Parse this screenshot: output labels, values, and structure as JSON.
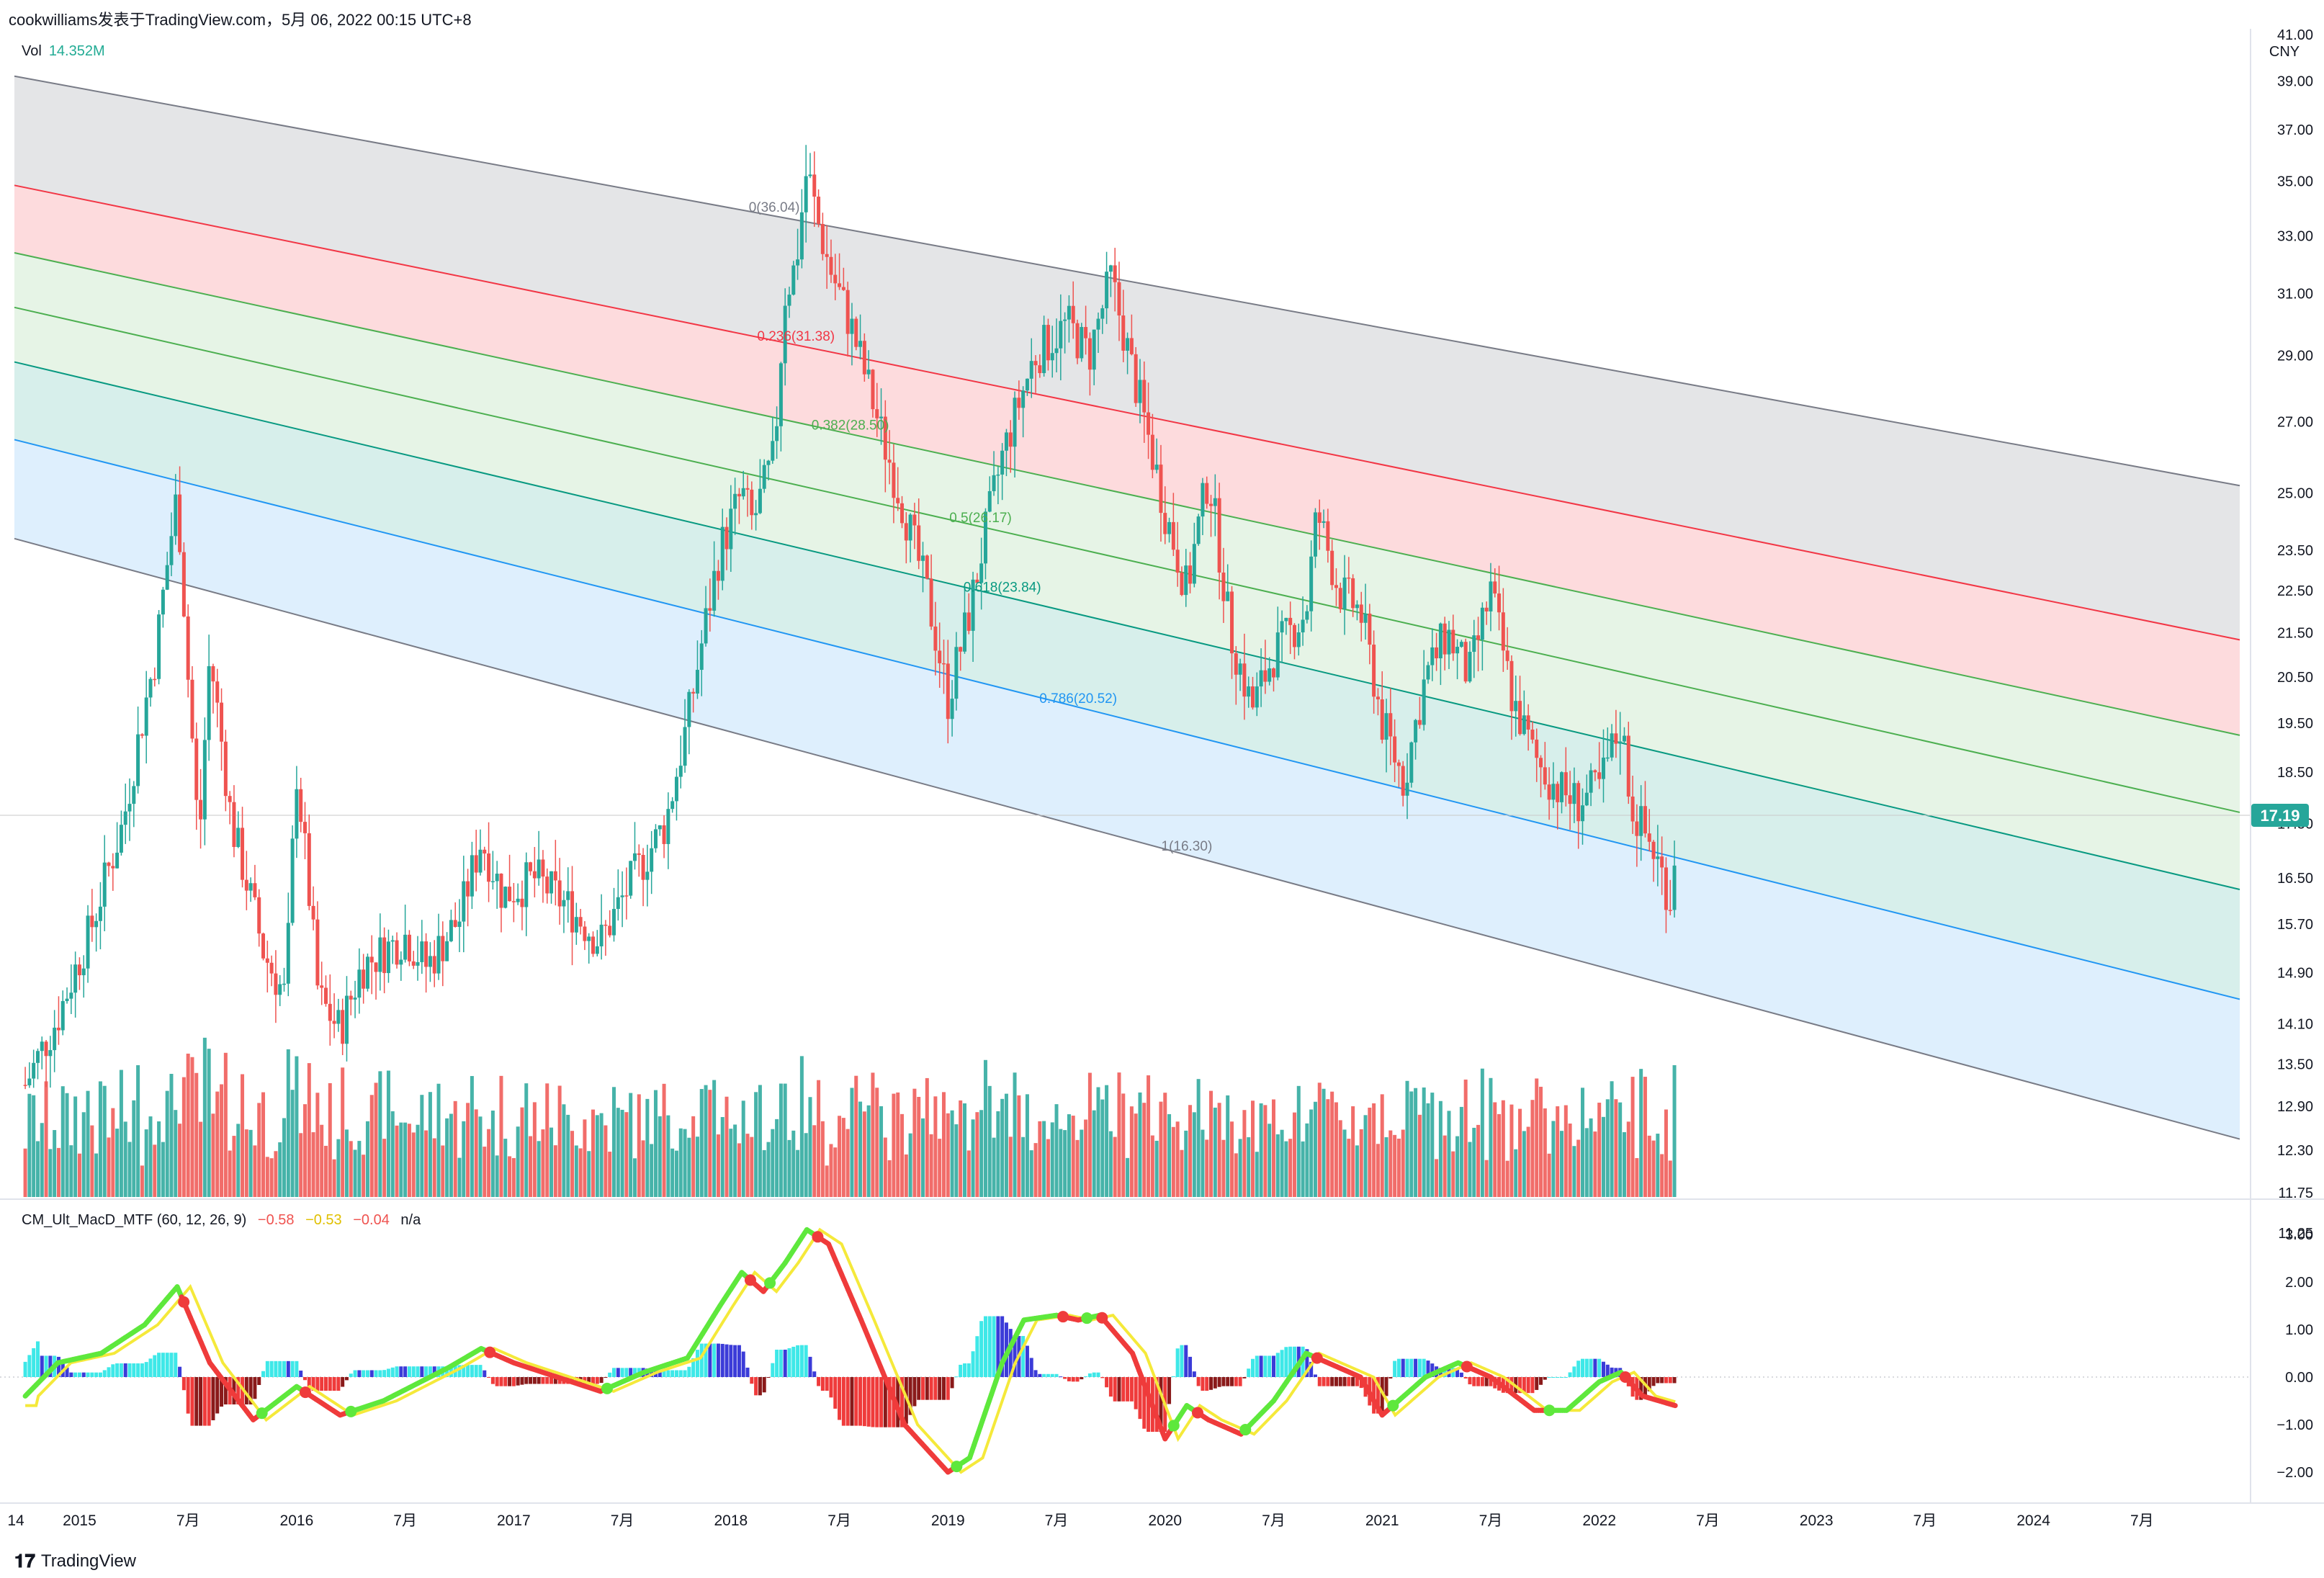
{
  "header": {
    "publisher": "cookwilliams发表于TradingView.com，5月 06, 2022 00:15 UTC+8"
  },
  "volume_legend": {
    "name": "Vol",
    "value": "14.352M"
  },
  "macd_legend": {
    "name": "CM_Ult_MacD_MTF (60, 12, 26, 9)",
    "v1": "−0.58",
    "v2": "−0.53",
    "v3": "−0.04",
    "v4": "n/a"
  },
  "price_axis": {
    "currency": "CNY",
    "current_price": "17.19"
  },
  "footer": {
    "brand": "TradingView"
  },
  "colors": {
    "up": "#26a69a",
    "down": "#ef5350",
    "fib_gray": "#787b86",
    "fib_red": "#f23645",
    "fib_green": "#4caf50",
    "fib_teal": "#089981",
    "fib_blue": "#2196f3"
  },
  "chart_data": {
    "type": "candlestick",
    "y_scale": "log",
    "y_ticks": [
      "41.00",
      "39.00",
      "37.00",
      "35.00",
      "33.00",
      "31.00",
      "29.00",
      "27.00",
      "25.00",
      "23.50",
      "22.50",
      "21.50",
      "20.50",
      "19.50",
      "18.50",
      "17.50",
      "16.50",
      "15.70",
      "14.90",
      "14.10",
      "13.50",
      "12.90",
      "12.30",
      "11.75",
      "11.25"
    ],
    "x_ticks": [
      "14",
      "2015",
      "7月",
      "2016",
      "7月",
      "2017",
      "7月",
      "2018",
      "7月",
      "2019",
      "7月",
      "2020",
      "7月",
      "2021",
      "7月",
      "2022",
      "7月",
      "2023",
      "7月",
      "2024",
      "7月"
    ],
    "price_path": [
      [
        2014.75,
        13.2
      ],
      [
        2014.9,
        14.2
      ],
      [
        2015.05,
        15.6
      ],
      [
        2015.2,
        17.5
      ],
      [
        2015.35,
        21.0
      ],
      [
        2015.45,
        25.0
      ],
      [
        2015.5,
        20.5
      ],
      [
        2015.55,
        17.0
      ],
      [
        2015.6,
        21.0
      ],
      [
        2015.7,
        17.5
      ],
      [
        2015.85,
        15.2
      ],
      [
        2015.95,
        14.5
      ],
      [
        2016.0,
        18.5
      ],
      [
        2016.1,
        14.5
      ],
      [
        2016.2,
        14.0
      ],
      [
        2016.3,
        15.0
      ],
      [
        2016.5,
        15.5
      ],
      [
        2016.6,
        15.0
      ],
      [
        2016.75,
        15.8
      ],
      [
        2016.85,
        17.2
      ],
      [
        2016.95,
        16.2
      ],
      [
        2017.1,
        16.5
      ],
      [
        2017.25,
        16.0
      ],
      [
        2017.4,
        15.4
      ],
      [
        2017.55,
        16.5
      ],
      [
        2017.7,
        17.5
      ],
      [
        2017.8,
        19.5
      ],
      [
        2017.95,
        23.5
      ],
      [
        2018.05,
        25.0
      ],
      [
        2018.1,
        24.2
      ],
      [
        2018.2,
        26.0
      ],
      [
        2018.25,
        31.0
      ],
      [
        2018.3,
        32.0
      ],
      [
        2018.35,
        35.5
      ],
      [
        2018.4,
        33.5
      ],
      [
        2018.45,
        32.0
      ],
      [
        2018.55,
        30.0
      ],
      [
        2018.7,
        26.5
      ],
      [
        2018.9,
        22.5
      ],
      [
        2019.0,
        20.0
      ],
      [
        2019.1,
        22.0
      ],
      [
        2019.25,
        26.0
      ],
      [
        2019.4,
        29.0
      ],
      [
        2019.55,
        30.0
      ],
      [
        2019.65,
        29.0
      ],
      [
        2019.75,
        31.5
      ],
      [
        2019.85,
        28.5
      ],
      [
        2020.0,
        24.5
      ],
      [
        2020.1,
        22.5
      ],
      [
        2020.2,
        25.5
      ],
      [
        2020.3,
        21.5
      ],
      [
        2020.4,
        19.8
      ],
      [
        2020.5,
        21.0
      ],
      [
        2020.65,
        22.0
      ],
      [
        2020.7,
        24.5
      ],
      [
        2020.8,
        22.5
      ],
      [
        2020.9,
        22.0
      ],
      [
        2021.0,
        19.5
      ],
      [
        2021.1,
        18.3
      ],
      [
        2021.2,
        20.5
      ],
      [
        2021.3,
        21.5
      ],
      [
        2021.4,
        20.5
      ],
      [
        2021.5,
        22.5
      ],
      [
        2021.6,
        20.0
      ],
      [
        2021.7,
        18.8
      ],
      [
        2021.8,
        18.2
      ],
      [
        2021.9,
        17.9
      ],
      [
        2022.0,
        18.2
      ],
      [
        2022.1,
        19.5
      ],
      [
        2022.15,
        17.8
      ],
      [
        2022.25,
        17.0
      ],
      [
        2022.33,
        16.1
      ],
      [
        2022.35,
        17.19
      ]
    ],
    "fib_channel": {
      "levels": [
        {
          "ratio": 0,
          "label": "0(36.04)"
        },
        {
          "ratio": 0.236,
          "label": "0.236(31.38)"
        },
        {
          "ratio": 0.382,
          "label": "0.382(28.50)"
        },
        {
          "ratio": 0.5,
          "label": "0.5(26.17)"
        },
        {
          "ratio": 0.618,
          "label": "0.618(23.84)"
        },
        {
          "ratio": 0.786,
          "label": "0.786(20.52)"
        },
        {
          "ratio": 1,
          "label": "1(16.30)"
        }
      ]
    },
    "macd_y_ticks": [
      "3.00",
      "2.00",
      "1.00",
      "0.00",
      "−1.00",
      "−2.00"
    ],
    "macd_path": [
      [
        2014.75,
        -0.4
      ],
      [
        2014.9,
        0.3
      ],
      [
        2015.1,
        0.5
      ],
      [
        2015.3,
        1.1
      ],
      [
        2015.45,
        1.9
      ],
      [
        2015.6,
        0.3
      ],
      [
        2015.8,
        -0.9
      ],
      [
        2016.0,
        -0.2
      ],
      [
        2016.2,
        -0.8
      ],
      [
        2016.4,
        -0.5
      ],
      [
        2016.7,
        0.2
      ],
      [
        2016.85,
        0.6
      ],
      [
        2017.0,
        0.3
      ],
      [
        2017.2,
        0.0
      ],
      [
        2017.4,
        -0.3
      ],
      [
        2017.6,
        0.1
      ],
      [
        2017.8,
        0.4
      ],
      [
        2017.95,
        1.5
      ],
      [
        2018.05,
        2.2
      ],
      [
        2018.15,
        1.8
      ],
      [
        2018.25,
        2.4
      ],
      [
        2018.35,
        3.1
      ],
      [
        2018.45,
        2.8
      ],
      [
        2018.6,
        1.2
      ],
      [
        2018.8,
        -1.0
      ],
      [
        2019.0,
        -2.0
      ],
      [
        2019.1,
        -1.7
      ],
      [
        2019.25,
        0.3
      ],
      [
        2019.35,
        1.2
      ],
      [
        2019.5,
        1.3
      ],
      [
        2019.6,
        1.2
      ],
      [
        2019.7,
        1.3
      ],
      [
        2019.85,
        0.5
      ],
      [
        2020.0,
        -1.3
      ],
      [
        2020.1,
        -0.6
      ],
      [
        2020.2,
        -0.9
      ],
      [
        2020.35,
        -1.2
      ],
      [
        2020.5,
        -0.5
      ],
      [
        2020.65,
        0.5
      ],
      [
        2020.75,
        0.3
      ],
      [
        2020.9,
        0.0
      ],
      [
        2021.0,
        -0.8
      ],
      [
        2021.2,
        0.0
      ],
      [
        2021.35,
        0.3
      ],
      [
        2021.5,
        0.0
      ],
      [
        2021.7,
        -0.7
      ],
      [
        2021.85,
        -0.7
      ],
      [
        2022.0,
        -0.1
      ],
      [
        2022.1,
        0.1
      ],
      [
        2022.2,
        -0.4
      ],
      [
        2022.35,
        -0.6
      ]
    ]
  }
}
